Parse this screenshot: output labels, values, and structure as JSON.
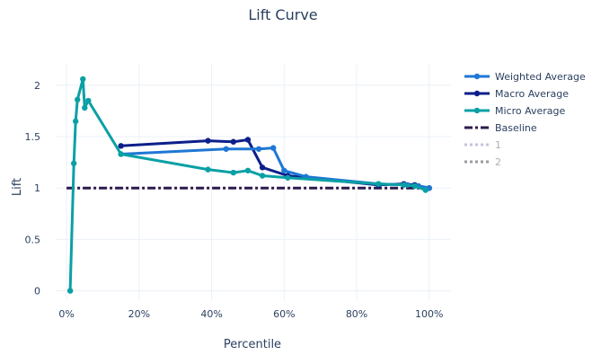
{
  "chart_data": {
    "type": "line",
    "title": "Lift Curve",
    "xlabel": "Percentile",
    "ylabel": "Lift",
    "xlim": [
      -0.03,
      1.06
    ],
    "ylim": [
      -0.1,
      2.2
    ],
    "xticks": [
      0,
      0.2,
      0.4,
      0.6,
      0.8,
      1.0
    ],
    "xtick_labels": [
      "0%",
      "20%",
      "40%",
      "60%",
      "80%",
      "100%"
    ],
    "yticks": [
      0,
      0.5,
      1,
      1.5,
      2
    ],
    "ytick_labels": [
      "0",
      "0.5",
      "1",
      "1.5",
      "2"
    ],
    "grid": true,
    "legend_position": "right",
    "series": [
      {
        "name": "Weighted Average",
        "color": "#1f77d4",
        "style": "solid-markers",
        "visible": true,
        "x": [
          0.15,
          0.44,
          0.53,
          0.57,
          0.6,
          0.66,
          0.86,
          0.94,
          0.97,
          1.0
        ],
        "y": [
          1.33,
          1.38,
          1.38,
          1.39,
          1.17,
          1.11,
          1.04,
          1.03,
          1.02,
          1.0
        ]
      },
      {
        "name": "Macro Average",
        "color": "#0d1f8a",
        "style": "solid-markers",
        "visible": true,
        "x": [
          0.15,
          0.39,
          0.46,
          0.5,
          0.54,
          0.61,
          0.86,
          0.93,
          0.96,
          1.0
        ],
        "y": [
          1.41,
          1.46,
          1.45,
          1.47,
          1.2,
          1.12,
          1.03,
          1.04,
          1.03,
          1.0
        ]
      },
      {
        "name": "Micro Average",
        "color": "#0aa0a5",
        "style": "solid-markers",
        "visible": true,
        "x": [
          0.01,
          0.02,
          0.025,
          0.03,
          0.045,
          0.05,
          0.06,
          0.15,
          0.39,
          0.46,
          0.5,
          0.54,
          0.61,
          0.86,
          0.93,
          0.96,
          0.99
        ],
        "y": [
          0.0,
          1.24,
          1.65,
          1.86,
          2.06,
          1.78,
          1.85,
          1.33,
          1.18,
          1.15,
          1.17,
          1.12,
          1.1,
          1.04,
          1.03,
          1.02,
          0.98
        ]
      },
      {
        "name": "Baseline",
        "color": "#2d1b4e",
        "style": "dashdot",
        "visible": true,
        "x": [
          0.0,
          1.0
        ],
        "y": [
          1.0,
          1.0
        ]
      },
      {
        "name": "1",
        "color": "#c6c3dd",
        "style": "dotted",
        "visible": false,
        "x": [],
        "y": []
      },
      {
        "name": "2",
        "color": "#9a9aa0",
        "style": "dotted",
        "visible": false,
        "x": [],
        "y": []
      }
    ]
  }
}
